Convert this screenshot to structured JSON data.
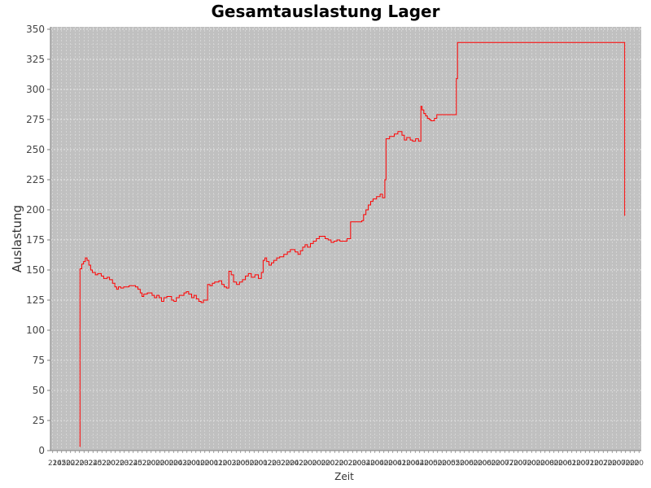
{
  "chart_data": {
    "type": "line",
    "step": true,
    "title": "Gesamtauslastung Lager",
    "xlabel": "Zeit",
    "ylabel": "Auslastung",
    "ylim": [
      0,
      352
    ],
    "yticks": [
      0,
      25,
      50,
      75,
      100,
      125,
      150,
      175,
      200,
      225,
      250,
      275,
      300,
      325,
      350
    ],
    "xlim": [
      0,
      100
    ],
    "xtick_labels": [
      "21",
      "24",
      "05",
      "20",
      "22",
      "02",
      "20",
      "23",
      "02",
      "24",
      "25",
      "02",
      "20",
      "20",
      "02",
      "20",
      "23",
      "02",
      "24",
      "25",
      "02",
      "20",
      "20",
      "00",
      "20",
      "20",
      "00",
      "20",
      "24",
      "03",
      "20",
      "20",
      "01",
      "00",
      "20",
      "20",
      "01",
      "01",
      "20",
      "20",
      "03",
      "20",
      "20",
      "05",
      "00",
      "20",
      "20",
      "01",
      "02",
      "20",
      "23",
      "02",
      "20",
      "20",
      "24",
      "02",
      "20",
      "20",
      "00",
      "20",
      "00",
      "20",
      "20",
      "02",
      "20",
      "20",
      "02",
      "20",
      "20",
      "03",
      "04",
      "20",
      "20",
      "04",
      "00",
      "20",
      "20",
      "04",
      "01",
      "20",
      "20",
      "04",
      "04",
      "20",
      "20",
      "05",
      "00",
      "20",
      "20",
      "05",
      "05",
      "20",
      "20",
      "06",
      "00",
      "20",
      "20",
      "06",
      "00",
      "20",
      "20",
      "07",
      "07",
      "20",
      "20",
      "07",
      "00",
      "20",
      "00",
      "20",
      "20",
      "08",
      "00",
      "20",
      "20",
      "06",
      "01",
      "20",
      "20",
      "07",
      "01",
      "20",
      "20",
      "07",
      "20",
      "20",
      "20",
      "07",
      "00",
      "20",
      "20",
      "20"
    ],
    "grid": true,
    "background": "#c0c0c0",
    "series": [
      {
        "color": "#ff0000",
        "points": [
          [
            5.0,
            3
          ],
          [
            5.0,
            151
          ],
          [
            5.3,
            151
          ],
          [
            5.3,
            155
          ],
          [
            5.6,
            155
          ],
          [
            5.6,
            157
          ],
          [
            5.9,
            157
          ],
          [
            5.9,
            160
          ],
          [
            6.2,
            160
          ],
          [
            6.2,
            158
          ],
          [
            6.5,
            158
          ],
          [
            6.5,
            154
          ],
          [
            6.8,
            154
          ],
          [
            6.8,
            150
          ],
          [
            7.1,
            150
          ],
          [
            7.1,
            148
          ],
          [
            7.6,
            148
          ],
          [
            7.6,
            146
          ],
          [
            8.0,
            146
          ],
          [
            8.0,
            147
          ],
          [
            8.6,
            147
          ],
          [
            8.6,
            145
          ],
          [
            9.0,
            145
          ],
          [
            9.0,
            143
          ],
          [
            9.6,
            143
          ],
          [
            9.6,
            144
          ],
          [
            10.0,
            144
          ],
          [
            10.0,
            142
          ],
          [
            10.5,
            142
          ],
          [
            10.5,
            139
          ],
          [
            10.9,
            139
          ],
          [
            10.9,
            136
          ],
          [
            11.2,
            136
          ],
          [
            11.2,
            134
          ],
          [
            11.5,
            134
          ],
          [
            11.5,
            136
          ],
          [
            11.9,
            136
          ],
          [
            11.9,
            135
          ],
          [
            12.4,
            135
          ],
          [
            12.4,
            136
          ],
          [
            13.3,
            136
          ],
          [
            13.3,
            137
          ],
          [
            14.4,
            137
          ],
          [
            14.4,
            136
          ],
          [
            14.8,
            136
          ],
          [
            14.8,
            134
          ],
          [
            15.2,
            134
          ],
          [
            15.2,
            131
          ],
          [
            15.5,
            131
          ],
          [
            15.5,
            128
          ],
          [
            15.8,
            128
          ],
          [
            15.8,
            130
          ],
          [
            16.4,
            130
          ],
          [
            16.4,
            131
          ],
          [
            17.2,
            131
          ],
          [
            17.2,
            129
          ],
          [
            17.6,
            129
          ],
          [
            17.6,
            127
          ],
          [
            18.0,
            127
          ],
          [
            18.0,
            129
          ],
          [
            18.4,
            129
          ],
          [
            18.4,
            127
          ],
          [
            18.8,
            127
          ],
          [
            18.8,
            124
          ],
          [
            19.2,
            124
          ],
          [
            19.2,
            127
          ],
          [
            19.7,
            127
          ],
          [
            19.7,
            128
          ],
          [
            20.5,
            128
          ],
          [
            20.5,
            125
          ],
          [
            20.9,
            125
          ],
          [
            20.9,
            124
          ],
          [
            21.3,
            124
          ],
          [
            21.3,
            127
          ],
          [
            21.8,
            127
          ],
          [
            21.8,
            129
          ],
          [
            22.6,
            129
          ],
          [
            22.6,
            131
          ],
          [
            23.0,
            131
          ],
          [
            23.0,
            132
          ],
          [
            23.4,
            132
          ],
          [
            23.4,
            130
          ],
          [
            23.9,
            130
          ],
          [
            23.9,
            127
          ],
          [
            24.3,
            127
          ],
          [
            24.3,
            129
          ],
          [
            24.7,
            129
          ],
          [
            24.7,
            126
          ],
          [
            25.1,
            126
          ],
          [
            25.1,
            124
          ],
          [
            25.5,
            124
          ],
          [
            25.5,
            123
          ],
          [
            25.9,
            123
          ],
          [
            25.9,
            125
          ],
          [
            26.6,
            125
          ],
          [
            26.6,
            138
          ],
          [
            27.0,
            138
          ],
          [
            27.0,
            137
          ],
          [
            27.4,
            137
          ],
          [
            27.4,
            139
          ],
          [
            27.8,
            139
          ],
          [
            27.8,
            140
          ],
          [
            28.5,
            140
          ],
          [
            28.5,
            141
          ],
          [
            29.0,
            141
          ],
          [
            29.0,
            138
          ],
          [
            29.4,
            138
          ],
          [
            29.4,
            136
          ],
          [
            29.8,
            136
          ],
          [
            29.8,
            135
          ],
          [
            30.2,
            135
          ],
          [
            30.2,
            149
          ],
          [
            30.6,
            149
          ],
          [
            30.6,
            146
          ],
          [
            31.0,
            146
          ],
          [
            31.0,
            140
          ],
          [
            31.5,
            140
          ],
          [
            31.5,
            138
          ],
          [
            32.0,
            138
          ],
          [
            32.0,
            140
          ],
          [
            32.5,
            140
          ],
          [
            32.5,
            142
          ],
          [
            33.0,
            142
          ],
          [
            33.0,
            145
          ],
          [
            33.5,
            145
          ],
          [
            33.5,
            147
          ],
          [
            34.0,
            147
          ],
          [
            34.0,
            144
          ],
          [
            34.6,
            144
          ],
          [
            34.6,
            146
          ],
          [
            35.2,
            146
          ],
          [
            35.2,
            143
          ],
          [
            35.7,
            143
          ],
          [
            35.7,
            148
          ],
          [
            36.0,
            148
          ],
          [
            36.0,
            158
          ],
          [
            36.3,
            158
          ],
          [
            36.3,
            160
          ],
          [
            36.6,
            160
          ],
          [
            36.6,
            157
          ],
          [
            37.0,
            157
          ],
          [
            37.0,
            154
          ],
          [
            37.4,
            154
          ],
          [
            37.4,
            156
          ],
          [
            37.8,
            156
          ],
          [
            37.8,
            158
          ],
          [
            38.3,
            158
          ],
          [
            38.3,
            160
          ],
          [
            38.8,
            160
          ],
          [
            38.8,
            161
          ],
          [
            39.5,
            161
          ],
          [
            39.5,
            163
          ],
          [
            40.1,
            163
          ],
          [
            40.1,
            165
          ],
          [
            40.6,
            165
          ],
          [
            40.6,
            167
          ],
          [
            41.4,
            167
          ],
          [
            41.4,
            165
          ],
          [
            41.9,
            165
          ],
          [
            41.9,
            163
          ],
          [
            42.3,
            163
          ],
          [
            42.3,
            166
          ],
          [
            42.7,
            166
          ],
          [
            42.7,
            169
          ],
          [
            43.1,
            169
          ],
          [
            43.1,
            171
          ],
          [
            43.5,
            171
          ],
          [
            43.5,
            169
          ],
          [
            44.0,
            169
          ],
          [
            44.0,
            172
          ],
          [
            44.5,
            172
          ],
          [
            44.5,
            174
          ],
          [
            45.0,
            174
          ],
          [
            45.0,
            176
          ],
          [
            45.5,
            176
          ],
          [
            45.5,
            178
          ],
          [
            46.5,
            178
          ],
          [
            46.5,
            176
          ],
          [
            47.0,
            176
          ],
          [
            47.0,
            175
          ],
          [
            47.5,
            175
          ],
          [
            47.5,
            173
          ],
          [
            48.0,
            173
          ],
          [
            48.0,
            174
          ],
          [
            48.5,
            174
          ],
          [
            48.5,
            175
          ],
          [
            49.0,
            175
          ],
          [
            49.0,
            174
          ],
          [
            50.2,
            174
          ],
          [
            50.2,
            176
          ],
          [
            50.8,
            176
          ],
          [
            50.8,
            190
          ],
          [
            52.7,
            190
          ],
          [
            52.7,
            191
          ],
          [
            53.0,
            191
          ],
          [
            53.0,
            196
          ],
          [
            53.4,
            196
          ],
          [
            53.4,
            200
          ],
          [
            53.8,
            200
          ],
          [
            53.8,
            204
          ],
          [
            54.2,
            204
          ],
          [
            54.2,
            207
          ],
          [
            54.6,
            207
          ],
          [
            54.6,
            209
          ],
          [
            55.2,
            209
          ],
          [
            55.2,
            211
          ],
          [
            55.8,
            211
          ],
          [
            55.8,
            213
          ],
          [
            56.2,
            213
          ],
          [
            56.2,
            210
          ],
          [
            56.6,
            210
          ],
          [
            56.6,
            225
          ],
          [
            56.8,
            225
          ],
          [
            56.8,
            259
          ],
          [
            57.4,
            259
          ],
          [
            57.4,
            261
          ],
          [
            58.2,
            261
          ],
          [
            58.2,
            263
          ],
          [
            58.8,
            263
          ],
          [
            58.8,
            265
          ],
          [
            59.5,
            265
          ],
          [
            59.5,
            262
          ],
          [
            59.9,
            262
          ],
          [
            59.9,
            258
          ],
          [
            60.3,
            258
          ],
          [
            60.3,
            260
          ],
          [
            60.9,
            260
          ],
          [
            60.9,
            258
          ],
          [
            61.3,
            258
          ],
          [
            61.3,
            257
          ],
          [
            61.8,
            257
          ],
          [
            61.8,
            259
          ],
          [
            62.3,
            259
          ],
          [
            62.3,
            257
          ],
          [
            62.7,
            257
          ],
          [
            62.7,
            286
          ],
          [
            62.9,
            286
          ],
          [
            62.9,
            283
          ],
          [
            63.2,
            283
          ],
          [
            63.2,
            280
          ],
          [
            63.5,
            280
          ],
          [
            63.5,
            278
          ],
          [
            63.8,
            278
          ],
          [
            63.8,
            276
          ],
          [
            64.1,
            276
          ],
          [
            64.1,
            275
          ],
          [
            64.4,
            275
          ],
          [
            64.4,
            274
          ],
          [
            65.0,
            274
          ],
          [
            65.0,
            276
          ],
          [
            65.4,
            276
          ],
          [
            65.4,
            279
          ],
          [
            68.7,
            279
          ],
          [
            68.7,
            309
          ],
          [
            68.9,
            309
          ],
          [
            68.9,
            339
          ],
          [
            97.2,
            339
          ],
          [
            97.2,
            195
          ]
        ]
      }
    ]
  }
}
